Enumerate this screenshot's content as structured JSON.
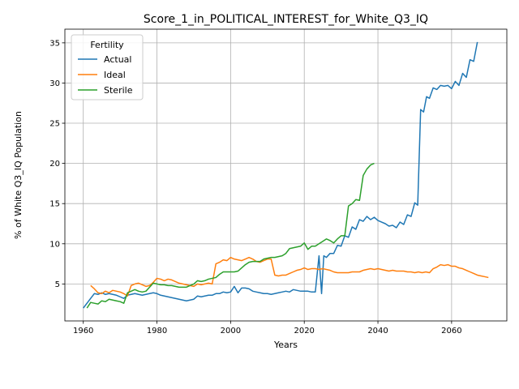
{
  "chart_data": {
    "type": "line",
    "title": "Score_1_in_POLITICAL_INTEREST_for_White_Q3_IQ",
    "xlabel": "Years",
    "ylabel": "% of White Q3_IQ Population",
    "xlim": [
      1955,
      2075
    ],
    "ylim": [
      0.4,
      36.7
    ],
    "xticks": [
      1960,
      1980,
      2000,
      2020,
      2040,
      2060
    ],
    "yticks": [
      5,
      10,
      15,
      20,
      25,
      30,
      35
    ],
    "grid": true,
    "legend": {
      "title": "Fertility",
      "placement": "top-left"
    },
    "series": [
      {
        "name": "Actual",
        "color": "#1f77b4",
        "points": [
          [
            1960,
            2.0
          ],
          [
            1961,
            2.6
          ],
          [
            1962,
            3.2
          ],
          [
            1963,
            3.8
          ],
          [
            1964,
            3.7
          ],
          [
            1965,
            3.9
          ],
          [
            1966,
            3.7
          ],
          [
            1967,
            3.8
          ],
          [
            1968,
            3.7
          ],
          [
            1969,
            3.6
          ],
          [
            1970,
            3.4
          ],
          [
            1971,
            3.2
          ],
          [
            1972,
            3.6
          ],
          [
            1973,
            3.7
          ],
          [
            1974,
            3.8
          ],
          [
            1975,
            3.7
          ],
          [
            1976,
            3.6
          ],
          [
            1977,
            3.7
          ],
          [
            1978,
            3.8
          ],
          [
            1979,
            3.9
          ],
          [
            1980,
            3.8
          ],
          [
            1981,
            3.6
          ],
          [
            1982,
            3.5
          ],
          [
            1983,
            3.4
          ],
          [
            1984,
            3.3
          ],
          [
            1985,
            3.2
          ],
          [
            1986,
            3.1
          ],
          [
            1987,
            3.0
          ],
          [
            1988,
            2.9
          ],
          [
            1989,
            3.0
          ],
          [
            1990,
            3.1
          ],
          [
            1991,
            3.5
          ],
          [
            1992,
            3.4
          ],
          [
            1993,
            3.5
          ],
          [
            1994,
            3.6
          ],
          [
            1995,
            3.6
          ],
          [
            1996,
            3.8
          ],
          [
            1997,
            3.8
          ],
          [
            1998,
            4.0
          ],
          [
            1999,
            3.9
          ],
          [
            2000,
            4.0
          ],
          [
            2001,
            4.7
          ],
          [
            2002,
            3.9
          ],
          [
            2003,
            4.5
          ],
          [
            2004,
            4.5
          ],
          [
            2005,
            4.4
          ],
          [
            2006,
            4.1
          ],
          [
            2007,
            4.0
          ],
          [
            2008,
            3.9
          ],
          [
            2009,
            3.8
          ],
          [
            2010,
            3.8
          ],
          [
            2011,
            3.7
          ],
          [
            2012,
            3.8
          ],
          [
            2013,
            3.9
          ],
          [
            2014,
            4.0
          ],
          [
            2015,
            4.1
          ],
          [
            2016,
            4.0
          ],
          [
            2017,
            4.3
          ],
          [
            2018,
            4.2
          ],
          [
            2019,
            4.1
          ],
          [
            2020,
            4.1
          ],
          [
            2021,
            4.1
          ],
          [
            2022,
            4.0
          ],
          [
            2023,
            4.0
          ],
          [
            2024,
            8.5
          ],
          [
            2024.7,
            3.8
          ],
          [
            2025.3,
            8.5
          ],
          [
            2026,
            8.3
          ],
          [
            2027,
            8.8
          ],
          [
            2028,
            8.8
          ],
          [
            2029,
            9.8
          ],
          [
            2030,
            9.7
          ],
          [
            2031,
            11.0
          ],
          [
            2032,
            10.8
          ],
          [
            2033,
            12.1
          ],
          [
            2034,
            11.8
          ],
          [
            2035,
            13.0
          ],
          [
            2036,
            12.8
          ],
          [
            2037,
            13.4
          ],
          [
            2038,
            13.0
          ],
          [
            2039,
            13.3
          ],
          [
            2040,
            12.9
          ],
          [
            2041,
            12.7
          ],
          [
            2042,
            12.5
          ],
          [
            2043,
            12.2
          ],
          [
            2044,
            12.3
          ],
          [
            2045,
            12.0
          ],
          [
            2046,
            12.7
          ],
          [
            2047,
            12.4
          ],
          [
            2048,
            13.6
          ],
          [
            2049,
            13.4
          ],
          [
            2050,
            15.1
          ],
          [
            2050.8,
            14.8
          ],
          [
            2051.6,
            26.7
          ],
          [
            2052.4,
            26.4
          ],
          [
            2053.2,
            28.3
          ],
          [
            2054,
            28.1
          ],
          [
            2055,
            29.4
          ],
          [
            2056,
            29.2
          ],
          [
            2057,
            29.7
          ],
          [
            2058,
            29.6
          ],
          [
            2059,
            29.7
          ],
          [
            2060,
            29.3
          ],
          [
            2061,
            30.2
          ],
          [
            2062,
            29.7
          ],
          [
            2063,
            31.2
          ],
          [
            2064,
            30.7
          ],
          [
            2065,
            32.9
          ],
          [
            2066,
            32.7
          ],
          [
            2067,
            35.1
          ]
        ]
      },
      {
        "name": "Ideal",
        "color": "#ff7f0e",
        "points": [
          [
            1962,
            4.8
          ],
          [
            1963,
            4.4
          ],
          [
            1964,
            3.9
          ],
          [
            1965,
            3.8
          ],
          [
            1966,
            4.1
          ],
          [
            1967,
            3.9
          ],
          [
            1968,
            4.2
          ],
          [
            1969,
            4.1
          ],
          [
            1970,
            4.0
          ],
          [
            1971,
            3.8
          ],
          [
            1972,
            3.5
          ],
          [
            1973,
            4.8
          ],
          [
            1974,
            5.0
          ],
          [
            1975,
            5.1
          ],
          [
            1976,
            4.9
          ],
          [
            1977,
            4.7
          ],
          [
            1978,
            4.8
          ],
          [
            1979,
            5.2
          ],
          [
            1980,
            5.7
          ],
          [
            1981,
            5.6
          ],
          [
            1982,
            5.4
          ],
          [
            1983,
            5.6
          ],
          [
            1984,
            5.5
          ],
          [
            1985,
            5.3
          ],
          [
            1986,
            5.1
          ],
          [
            1987,
            5.0
          ],
          [
            1988,
            4.9
          ],
          [
            1989,
            4.8
          ],
          [
            1990,
            4.7
          ],
          [
            1991,
            5.0
          ],
          [
            1992,
            4.9
          ],
          [
            1993,
            5.0
          ],
          [
            1994,
            5.1
          ],
          [
            1995,
            5.0
          ],
          [
            1996,
            7.5
          ],
          [
            1997,
            7.7
          ],
          [
            1998,
            8.0
          ],
          [
            1999,
            7.9
          ],
          [
            2000,
            8.3
          ],
          [
            2001,
            8.1
          ],
          [
            2002,
            8.0
          ],
          [
            2003,
            7.9
          ],
          [
            2004,
            8.1
          ],
          [
            2005,
            8.3
          ],
          [
            2006,
            8.1
          ],
          [
            2007,
            7.8
          ],
          [
            2008,
            7.7
          ],
          [
            2009,
            7.9
          ],
          [
            2010,
            8.1
          ],
          [
            2011,
            8.1
          ],
          [
            2012,
            6.1
          ],
          [
            2013,
            6.0
          ],
          [
            2014,
            6.1
          ],
          [
            2015,
            6.1
          ],
          [
            2016,
            6.3
          ],
          [
            2017,
            6.5
          ],
          [
            2018,
            6.7
          ],
          [
            2019,
            6.8
          ],
          [
            2020,
            7.0
          ],
          [
            2021,
            6.8
          ],
          [
            2022,
            6.9
          ],
          [
            2023,
            6.9
          ],
          [
            2024,
            6.8
          ],
          [
            2025,
            6.9
          ],
          [
            2026,
            6.8
          ],
          [
            2027,
            6.7
          ],
          [
            2028,
            6.5
          ],
          [
            2029,
            6.4
          ],
          [
            2030,
            6.4
          ],
          [
            2031,
            6.4
          ],
          [
            2032,
            6.4
          ],
          [
            2033,
            6.5
          ],
          [
            2034,
            6.5
          ],
          [
            2035,
            6.5
          ],
          [
            2036,
            6.7
          ],
          [
            2037,
            6.8
          ],
          [
            2038,
            6.9
          ],
          [
            2039,
            6.8
          ],
          [
            2040,
            6.9
          ],
          [
            2041,
            6.8
          ],
          [
            2042,
            6.7
          ],
          [
            2043,
            6.6
          ],
          [
            2044,
            6.7
          ],
          [
            2045,
            6.6
          ],
          [
            2046,
            6.6
          ],
          [
            2047,
            6.6
          ],
          [
            2048,
            6.5
          ],
          [
            2049,
            6.5
          ],
          [
            2050,
            6.4
          ],
          [
            2051,
            6.5
          ],
          [
            2052,
            6.4
          ],
          [
            2053,
            6.5
          ],
          [
            2054,
            6.4
          ],
          [
            2055,
            6.9
          ],
          [
            2056,
            7.1
          ],
          [
            2057,
            7.4
          ],
          [
            2058,
            7.3
          ],
          [
            2059,
            7.4
          ],
          [
            2060,
            7.2
          ],
          [
            2061,
            7.2
          ],
          [
            2062,
            7.0
          ],
          [
            2063,
            6.9
          ],
          [
            2064,
            6.7
          ],
          [
            2065,
            6.5
          ],
          [
            2066,
            6.3
          ],
          [
            2067,
            6.1
          ],
          [
            2068,
            6.0
          ],
          [
            2069,
            5.9
          ],
          [
            2070,
            5.8
          ]
        ]
      },
      {
        "name": "Sterile",
        "color": "#2ca02c",
        "points": [
          [
            1961,
            2.0
          ],
          [
            1962,
            2.7
          ],
          [
            1963,
            2.6
          ],
          [
            1964,
            2.5
          ],
          [
            1965,
            2.9
          ],
          [
            1966,
            2.8
          ],
          [
            1967,
            3.1
          ],
          [
            1968,
            3.0
          ],
          [
            1969,
            2.9
          ],
          [
            1970,
            2.8
          ],
          [
            1971,
            2.6
          ],
          [
            1972,
            3.9
          ],
          [
            1973,
            4.1
          ],
          [
            1974,
            4.3
          ],
          [
            1975,
            4.1
          ],
          [
            1976,
            4.0
          ],
          [
            1977,
            4.1
          ],
          [
            1978,
            4.6
          ],
          [
            1979,
            5.1
          ],
          [
            1980,
            5.0
          ],
          [
            1981,
            4.9
          ],
          [
            1982,
            4.9
          ],
          [
            1983,
            4.8
          ],
          [
            1984,
            4.8
          ],
          [
            1985,
            4.7
          ],
          [
            1986,
            4.6
          ],
          [
            1987,
            4.6
          ],
          [
            1988,
            4.6
          ],
          [
            1989,
            4.8
          ],
          [
            1990,
            5.0
          ],
          [
            1991,
            5.4
          ],
          [
            1992,
            5.3
          ],
          [
            1993,
            5.4
          ],
          [
            1994,
            5.6
          ],
          [
            1995,
            5.7
          ],
          [
            1996,
            5.8
          ],
          [
            1997,
            6.2
          ],
          [
            1998,
            6.5
          ],
          [
            1999,
            6.5
          ],
          [
            2000,
            6.5
          ],
          [
            2001,
            6.5
          ],
          [
            2002,
            6.6
          ],
          [
            2003,
            7.0
          ],
          [
            2004,
            7.4
          ],
          [
            2005,
            7.7
          ],
          [
            2006,
            7.8
          ],
          [
            2007,
            7.8
          ],
          [
            2008,
            7.8
          ],
          [
            2009,
            8.1
          ],
          [
            2010,
            8.2
          ],
          [
            2011,
            8.3
          ],
          [
            2012,
            8.3
          ],
          [
            2013,
            8.4
          ],
          [
            2014,
            8.5
          ],
          [
            2015,
            8.8
          ],
          [
            2016,
            9.4
          ],
          [
            2017,
            9.5
          ],
          [
            2018,
            9.6
          ],
          [
            2019,
            9.7
          ],
          [
            2020,
            10.1
          ],
          [
            2021,
            9.3
          ],
          [
            2022,
            9.7
          ],
          [
            2023,
            9.7
          ],
          [
            2024,
            10.0
          ],
          [
            2025,
            10.3
          ],
          [
            2026,
            10.6
          ],
          [
            2027,
            10.4
          ],
          [
            2028,
            10.1
          ],
          [
            2029,
            10.6
          ],
          [
            2030,
            11.0
          ],
          [
            2031,
            11.0
          ],
          [
            2032,
            14.7
          ],
          [
            2033,
            15.0
          ],
          [
            2034,
            15.5
          ],
          [
            2035,
            15.4
          ],
          [
            2036,
            18.5
          ],
          [
            2037,
            19.3
          ],
          [
            2038,
            19.8
          ],
          [
            2039,
            20.0
          ]
        ]
      }
    ]
  }
}
